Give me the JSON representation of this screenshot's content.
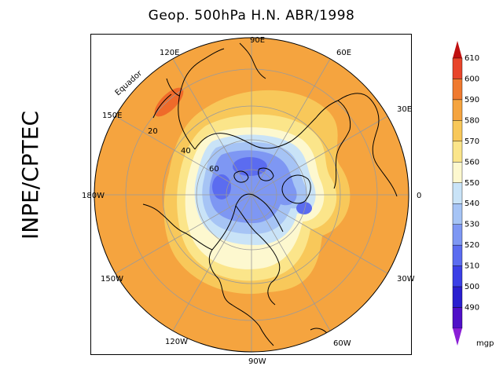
{
  "title": "Geop. 500hPa H.N. ABR/1998",
  "side_label": "INPE/CPTEC",
  "map": {
    "longitude_labels": [
      "90E",
      "60E",
      "30E",
      "0",
      "30W",
      "60W",
      "90W",
      "120W",
      "150W",
      "180W",
      "150E",
      "120E"
    ],
    "latitude_labels": [
      "20",
      "40",
      "60"
    ],
    "equator_label": "Equador"
  },
  "colorbar": {
    "unit": "mgp",
    "levels": [
      "610",
      "600",
      "590",
      "580",
      "570",
      "560",
      "550",
      "540",
      "530",
      "520",
      "510",
      "500",
      "490"
    ],
    "colors": [
      "#d32f1a",
      "#e8452b",
      "#ef7a2f",
      "#f5a43f",
      "#f8c85a",
      "#fbe58a",
      "#fdf8cf",
      "#c9e3f7",
      "#a6c4f5",
      "#7e97f3",
      "#5b6cf0",
      "#3b3fe6",
      "#2a1fcf",
      "#5010c8",
      "#7a00cc"
    ],
    "top_arrow_color": "#c01010",
    "bottom_arrow_color": "#8a1ed6"
  },
  "field_colors": {
    "ring_580": "#f5a43f",
    "ring_570": "#f8c85a",
    "ring_560": "#fbe58a",
    "ring_550": "#fdf8cf",
    "ring_540": "#c9e3f7",
    "ring_530": "#a6c4f5",
    "ring_520": "#7e97f3",
    "ring_510": "#5b6cf0",
    "high_590": "#ef6a2a"
  }
}
